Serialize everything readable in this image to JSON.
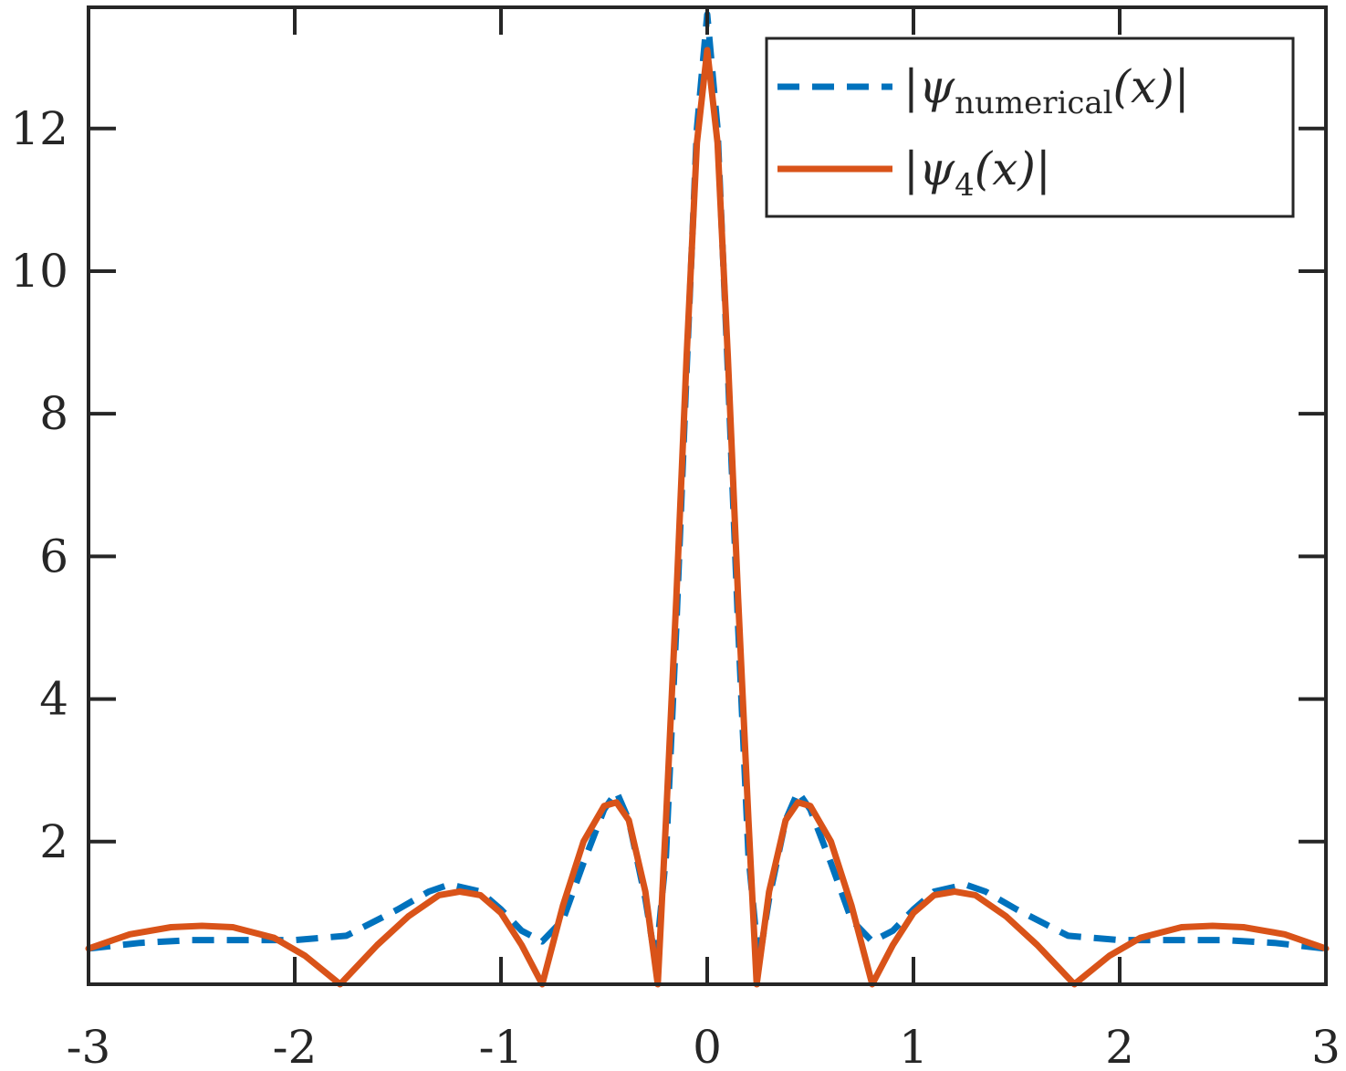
{
  "chart_data": {
    "type": "line",
    "xlim": [
      -3,
      3
    ],
    "ylim": [
      0,
      13.7
    ],
    "xticks": [
      -3,
      -2,
      -1,
      0,
      1,
      2,
      3
    ],
    "xtick_labels": [
      "-3",
      "-2",
      "-1",
      "0",
      "1",
      "2",
      "3"
    ],
    "yticks": [
      2,
      4,
      6,
      8,
      10,
      12
    ],
    "ytick_labels": [
      "2",
      "4",
      "6",
      "8",
      "10",
      "12"
    ],
    "grid": false,
    "legend_position": "top-right",
    "series": [
      {
        "name": "|ψnumerical(x)|",
        "legend_main": "|ψ",
        "legend_sub": "numerical",
        "legend_tail": "(x)|",
        "color": "#0072BD",
        "style": "dashed",
        "x": [
          -3.0,
          -2.75,
          -2.5,
          -2.25,
          -2.0,
          -1.75,
          -1.5,
          -1.35,
          -1.25,
          -1.1,
          -1.0,
          -0.9,
          -0.8,
          -0.7,
          -0.6,
          -0.5,
          -0.44,
          -0.38,
          -0.3,
          -0.25,
          -0.2,
          -0.15,
          -0.1,
          -0.05,
          0.0,
          0.05,
          0.1,
          0.15,
          0.2,
          0.25,
          0.3,
          0.38,
          0.44,
          0.5,
          0.6,
          0.7,
          0.8,
          0.9,
          1.0,
          1.1,
          1.25,
          1.35,
          1.5,
          1.75,
          2.0,
          2.25,
          2.5,
          2.75,
          3.0
        ],
        "y": [
          0.5,
          0.58,
          0.62,
          0.62,
          0.62,
          0.68,
          1.05,
          1.3,
          1.4,
          1.3,
          1.05,
          0.75,
          0.6,
          0.9,
          1.7,
          2.45,
          2.7,
          2.3,
          1.2,
          0.3,
          1.8,
          5.0,
          8.6,
          12.0,
          13.6,
          12.0,
          8.6,
          5.0,
          1.8,
          0.3,
          1.2,
          2.3,
          2.7,
          2.45,
          1.7,
          0.9,
          0.6,
          0.75,
          1.05,
          1.3,
          1.4,
          1.3,
          1.05,
          0.68,
          0.62,
          0.62,
          0.62,
          0.58,
          0.5
        ]
      },
      {
        "name": "|ψ4(x)|",
        "legend_main": "|ψ",
        "legend_sub": "4",
        "legend_tail": "(x)|",
        "color": "#D95319",
        "style": "solid",
        "x": [
          -3.0,
          -2.8,
          -2.6,
          -2.45,
          -2.3,
          -2.1,
          -1.95,
          -1.78,
          -1.6,
          -1.45,
          -1.3,
          -1.2,
          -1.1,
          -1.0,
          -0.9,
          -0.8,
          -0.7,
          -0.6,
          -0.5,
          -0.44,
          -0.38,
          -0.3,
          -0.24,
          -0.2,
          -0.15,
          -0.1,
          -0.05,
          0.0,
          0.05,
          0.1,
          0.15,
          0.2,
          0.24,
          0.3,
          0.38,
          0.44,
          0.5,
          0.6,
          0.7,
          0.8,
          0.9,
          1.0,
          1.1,
          1.2,
          1.3,
          1.45,
          1.6,
          1.78,
          1.95,
          2.1,
          2.3,
          2.45,
          2.6,
          2.8,
          3.0
        ],
        "y": [
          0.5,
          0.7,
          0.8,
          0.82,
          0.8,
          0.65,
          0.4,
          0.0,
          0.55,
          0.95,
          1.25,
          1.3,
          1.25,
          1.0,
          0.55,
          0.0,
          1.1,
          2.0,
          2.5,
          2.55,
          2.3,
          1.3,
          0.0,
          2.3,
          5.4,
          8.8,
          11.8,
          13.1,
          11.8,
          8.8,
          5.4,
          2.3,
          0.0,
          1.3,
          2.3,
          2.55,
          2.5,
          2.0,
          1.1,
          0.0,
          0.55,
          1.0,
          1.25,
          1.3,
          1.25,
          0.95,
          0.55,
          0.0,
          0.4,
          0.65,
          0.8,
          0.82,
          0.8,
          0.7,
          0.5
        ]
      }
    ]
  }
}
